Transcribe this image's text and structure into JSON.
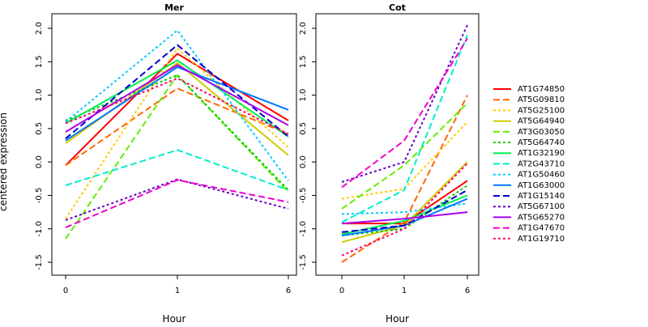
{
  "ylabel": "centered expression",
  "xlabel": "Hour",
  "chart_data": [
    {
      "type": "line",
      "title": "Mer",
      "categories": [
        "0",
        "1",
        "6"
      ],
      "yticks": [
        "-1.5",
        "-1.0",
        "-0.5",
        "0.0",
        "0.5",
        "1.0",
        "1.5",
        "2.0"
      ],
      "ylim": [
        -1.65,
        2.15
      ],
      "series": [
        {
          "name": "AT1G74850",
          "color": "#ff0000",
          "dash": "solid",
          "values": [
            -0.05,
            1.62,
            0.62
          ]
        },
        {
          "name": "AT5G09810",
          "color": "#ff6600",
          "dash": "dashed",
          "values": [
            -0.05,
            1.1,
            0.42
          ]
        },
        {
          "name": "AT5G25100",
          "color": "#ffcc00",
          "dash": "dotted",
          "values": [
            -0.85,
            1.7,
            0.22
          ]
        },
        {
          "name": "AT5G64940",
          "color": "#cccc00",
          "dash": "solid",
          "values": [
            0.28,
            1.48,
            0.1
          ]
        },
        {
          "name": "AT3G03050",
          "color": "#66ee00",
          "dash": "dashed",
          "values": [
            -1.15,
            1.3,
            -0.45
          ]
        },
        {
          "name": "AT5G64740",
          "color": "#00cc00",
          "dash": "dotted",
          "values": [
            0.62,
            1.3,
            -0.42
          ]
        },
        {
          "name": "AT1G32190",
          "color": "#00ee55",
          "dash": "solid",
          "values": [
            0.58,
            1.52,
            0.38
          ]
        },
        {
          "name": "AT2G43710",
          "color": "#00eecc",
          "dash": "dashed",
          "values": [
            -0.35,
            0.18,
            -0.42
          ]
        },
        {
          "name": "AT1G50460",
          "color": "#00ccff",
          "dash": "dotted",
          "values": [
            0.6,
            1.97,
            -0.28
          ]
        },
        {
          "name": "AT1G63000",
          "color": "#0077ff",
          "dash": "solid",
          "values": [
            0.32,
            1.42,
            0.78
          ]
        },
        {
          "name": "AT1G15140",
          "color": "#0000cc",
          "dash": "dashed",
          "values": [
            0.35,
            1.75,
            0.38
          ]
        },
        {
          "name": "AT5G67100",
          "color": "#6600cc",
          "dash": "dotted",
          "values": [
            -0.87,
            -0.26,
            -0.7
          ]
        },
        {
          "name": "AT5G65270",
          "color": "#aa00ee",
          "dash": "solid",
          "values": [
            0.45,
            1.45,
            0.55
          ]
        },
        {
          "name": "AT1G47670",
          "color": "#ee00cc",
          "dash": "dashed",
          "values": [
            -0.98,
            -0.27,
            -0.6
          ]
        },
        {
          "name": "AT1G19710",
          "color": "#ff0066",
          "dash": "dotted",
          "values": [
            0.58,
            1.25,
            0.42
          ]
        }
      ]
    },
    {
      "type": "line",
      "title": "Cot",
      "categories": [
        "0",
        "1",
        "6"
      ],
      "yticks": [
        "-1.5",
        "-1.0",
        "-0.5",
        "0.0",
        "0.5",
        "1.0",
        "1.5",
        "2.0"
      ],
      "ylim": [
        -1.65,
        2.15
      ],
      "series": [
        {
          "name": "AT1G74850",
          "color": "#ff0000",
          "dash": "solid",
          "values": [
            -0.92,
            -0.92,
            -0.28
          ]
        },
        {
          "name": "AT5G09810",
          "color": "#ff6600",
          "dash": "dashed",
          "values": [
            -1.5,
            -0.9,
            1.0
          ]
        },
        {
          "name": "AT5G25100",
          "color": "#ffcc00",
          "dash": "dotted",
          "values": [
            -0.55,
            -0.4,
            0.6
          ]
        },
        {
          "name": "AT5G64940",
          "color": "#cccc00",
          "dash": "solid",
          "values": [
            -1.2,
            -0.95,
            0.0
          ]
        },
        {
          "name": "AT3G03050",
          "color": "#66ee00",
          "dash": "dashed",
          "values": [
            -0.7,
            -0.05,
            0.88
          ]
        },
        {
          "name": "AT5G64740",
          "color": "#00cc00",
          "dash": "dotted",
          "values": [
            -1.1,
            -1.0,
            -0.35
          ]
        },
        {
          "name": "AT1G32190",
          "color": "#00ee55",
          "dash": "solid",
          "values": [
            -1.08,
            -0.88,
            -0.5
          ]
        },
        {
          "name": "AT2G43710",
          "color": "#00eecc",
          "dash": "dashed",
          "values": [
            -0.9,
            -0.42,
            1.9
          ]
        },
        {
          "name": "AT1G50460",
          "color": "#00ccff",
          "dash": "dotted",
          "values": [
            -0.78,
            -0.75,
            -0.62
          ]
        },
        {
          "name": "AT1G63000",
          "color": "#0077ff",
          "dash": "solid",
          "values": [
            -1.1,
            -0.95,
            -0.55
          ]
        },
        {
          "name": "AT1G15140",
          "color": "#0000cc",
          "dash": "dashed",
          "values": [
            -1.05,
            -0.95,
            -0.42
          ]
        },
        {
          "name": "AT5G67100",
          "color": "#6600cc",
          "dash": "dotted",
          "values": [
            -0.3,
            0.0,
            2.05
          ]
        },
        {
          "name": "AT5G65270",
          "color": "#aa00ee",
          "dash": "solid",
          "values": [
            -0.92,
            -0.85,
            -0.75
          ]
        },
        {
          "name": "AT1G47670",
          "color": "#ee00cc",
          "dash": "dashed",
          "values": [
            -0.38,
            0.32,
            1.85
          ]
        },
        {
          "name": "AT1G19710",
          "color": "#ff0066",
          "dash": "dotted",
          "values": [
            -1.4,
            -1.0,
            -0.02
          ]
        }
      ]
    }
  ]
}
